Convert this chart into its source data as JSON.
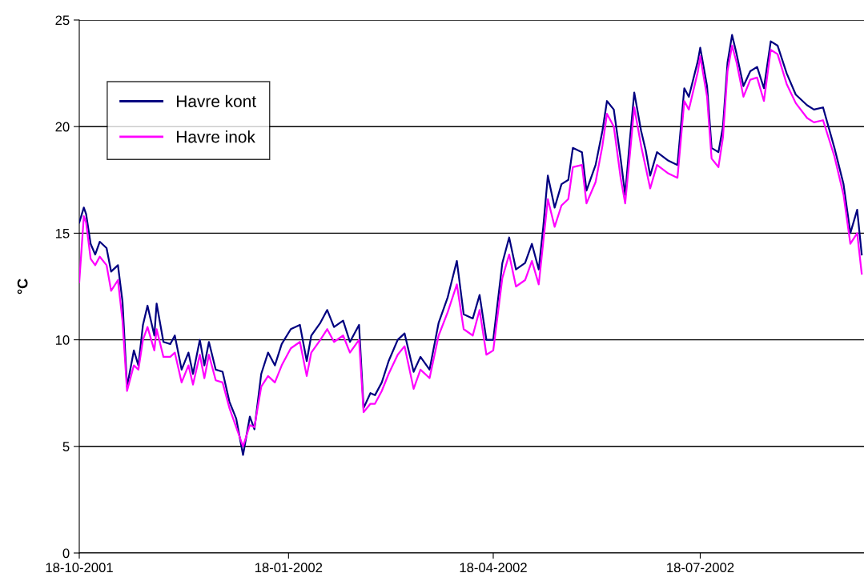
{
  "chart_data": {
    "type": "line",
    "ylabel": "°C",
    "x": [
      "2001-10-18",
      "2001-10-20",
      "2001-10-21",
      "2001-10-23",
      "2001-10-25",
      "2001-10-27",
      "2001-10-30",
      "2001-11-01",
      "2001-11-04",
      "2001-11-06",
      "2001-11-08",
      "2001-11-11",
      "2001-11-13",
      "2001-11-15",
      "2001-11-17",
      "2001-11-20",
      "2001-11-21",
      "2001-11-24",
      "2001-11-27",
      "2001-11-29",
      "2001-12-02",
      "2001-12-05",
      "2001-12-07",
      "2001-12-10",
      "2001-12-12",
      "2001-12-14",
      "2001-12-17",
      "2001-12-20",
      "2001-12-23",
      "2001-12-26",
      "2001-12-29",
      "2002-01-01",
      "2002-01-03",
      "2002-01-06",
      "2002-01-09",
      "2002-01-12",
      "2002-01-15",
      "2002-01-19",
      "2002-01-23",
      "2002-01-26",
      "2002-01-28",
      "2002-02-01",
      "2002-02-04",
      "2002-02-07",
      "2002-02-11",
      "2002-02-14",
      "2002-02-18",
      "2002-02-20",
      "2002-02-23",
      "2002-02-25",
      "2002-02-28",
      "2002-03-03",
      "2002-03-07",
      "2002-03-10",
      "2002-03-14",
      "2002-03-17",
      "2002-03-21",
      "2002-03-25",
      "2002-03-29",
      "2002-04-02",
      "2002-04-05",
      "2002-04-09",
      "2002-04-12",
      "2002-04-15",
      "2002-04-18",
      "2002-04-22",
      "2002-04-25",
      "2002-04-28",
      "2002-05-02",
      "2002-05-05",
      "2002-05-08",
      "2002-05-10",
      "2002-05-12",
      "2002-05-15",
      "2002-05-18",
      "2002-05-21",
      "2002-05-23",
      "2002-05-27",
      "2002-05-29",
      "2002-06-02",
      "2002-06-05",
      "2002-06-07",
      "2002-06-10",
      "2002-06-13",
      "2002-06-15",
      "2002-06-17",
      "2002-06-19",
      "2002-06-22",
      "2002-06-24",
      "2002-06-26",
      "2002-06-29",
      "2002-07-04",
      "2002-07-08",
      "2002-07-11",
      "2002-07-13",
      "2002-07-17",
      "2002-07-18",
      "2002-07-21",
      "2002-07-23",
      "2002-07-26",
      "2002-07-28",
      "2002-07-30",
      "2002-08-01",
      "2002-08-03",
      "2002-08-06",
      "2002-08-09",
      "2002-08-12",
      "2002-08-15",
      "2002-08-18",
      "2002-08-21",
      "2002-08-25",
      "2002-08-29",
      "2002-09-03",
      "2002-09-06",
      "2002-09-10",
      "2002-09-15",
      "2002-09-19",
      "2002-09-22",
      "2002-09-25",
      "2002-09-27"
    ],
    "series": [
      {
        "name": "Havre kont",
        "color": "#000080",
        "values": [
          15.5,
          16.2,
          15.9,
          14.5,
          14.0,
          14.6,
          14.3,
          13.2,
          13.5,
          11.8,
          7.8,
          9.5,
          8.8,
          10.7,
          11.6,
          10.2,
          11.7,
          9.9,
          9.8,
          10.2,
          8.6,
          9.4,
          8.4,
          10.0,
          8.8,
          9.9,
          8.6,
          8.5,
          7.1,
          6.3,
          4.6,
          6.4,
          5.8,
          8.4,
          9.4,
          8.8,
          9.8,
          10.5,
          10.7,
          9.0,
          10.2,
          10.8,
          11.4,
          10.6,
          10.9,
          9.9,
          10.7,
          6.8,
          7.5,
          7.4,
          8.0,
          9.0,
          10.0,
          10.3,
          8.5,
          9.2,
          8.6,
          10.8,
          12.0,
          13.7,
          11.2,
          11.0,
          12.1,
          10.0,
          10.0,
          13.6,
          14.8,
          13.3,
          13.6,
          14.5,
          13.3,
          15.3,
          17.7,
          16.2,
          17.3,
          17.5,
          19.0,
          18.8,
          17.0,
          18.2,
          19.8,
          21.2,
          20.8,
          18.5,
          16.8,
          19.3,
          21.6,
          19.8,
          18.9,
          17.7,
          18.8,
          18.4,
          18.2,
          21.8,
          21.4,
          23.1,
          23.7,
          21.9,
          19.0,
          18.8,
          20.0,
          23.0,
          24.3,
          23.4,
          21.9,
          22.6,
          22.8,
          21.8,
          24.0,
          23.8,
          22.5,
          21.5,
          21.0,
          20.8,
          20.9,
          19.0,
          17.3,
          15.0,
          16.1,
          14.0
        ]
      },
      {
        "name": "Havre inok",
        "color": "#ff00ff",
        "values": [
          12.7,
          15.8,
          15.5,
          13.8,
          13.5,
          13.9,
          13.5,
          12.3,
          12.8,
          10.9,
          7.6,
          8.8,
          8.6,
          10.0,
          10.6,
          9.5,
          10.5,
          9.2,
          9.2,
          9.4,
          8.0,
          8.8,
          7.9,
          9.3,
          8.2,
          9.3,
          8.1,
          8.0,
          6.8,
          5.9,
          5.0,
          6.0,
          5.9,
          7.8,
          8.3,
          8.0,
          8.8,
          9.6,
          9.9,
          8.3,
          9.4,
          10.0,
          10.5,
          9.9,
          10.2,
          9.4,
          10.0,
          6.6,
          7.0,
          7.0,
          7.6,
          8.4,
          9.3,
          9.7,
          7.7,
          8.6,
          8.2,
          10.2,
          11.3,
          12.6,
          10.5,
          10.2,
          11.4,
          9.3,
          9.5,
          12.9,
          14.0,
          12.5,
          12.8,
          13.7,
          12.6,
          14.6,
          16.6,
          15.3,
          16.3,
          16.6,
          18.1,
          18.2,
          16.4,
          17.4,
          19.1,
          20.6,
          20.0,
          17.6,
          16.4,
          18.6,
          20.9,
          19.1,
          18.1,
          17.1,
          18.2,
          17.8,
          17.6,
          21.2,
          20.8,
          22.6,
          23.3,
          21.4,
          18.5,
          18.1,
          19.5,
          22.6,
          23.8,
          23.0,
          21.4,
          22.2,
          22.3,
          21.2,
          23.6,
          23.4,
          22.0,
          21.1,
          20.4,
          20.2,
          20.3,
          18.6,
          16.8,
          14.5,
          15.0,
          13.1
        ]
      }
    ],
    "xlim": [
      "2001-10-18",
      "2002-09-28"
    ],
    "xticks": [
      {
        "value": "2001-10-18",
        "label": "18-10-2001"
      },
      {
        "value": "2002-01-18",
        "label": "18-01-2002"
      },
      {
        "value": "2002-04-18",
        "label": "18-04-2002"
      },
      {
        "value": "2002-07-18",
        "label": "18-07-2002"
      }
    ],
    "ylim": [
      0,
      25
    ],
    "yticks": [
      0,
      5,
      10,
      15,
      20,
      25
    ],
    "grid": "y",
    "legend": "top left"
  }
}
